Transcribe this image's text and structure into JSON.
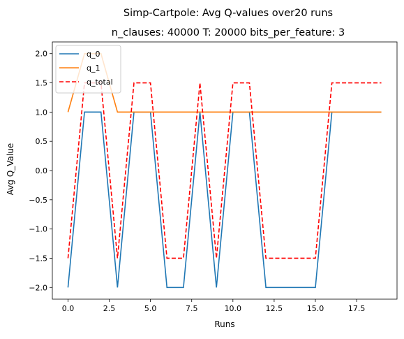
{
  "chart_data": {
    "type": "line",
    "title": "Simp-Cartpole: Avg Q-values over20 runs",
    "subtitle": "n_clauses: 40000 T: 20000 bits_per_feature: 3",
    "xlabel": "Runs",
    "ylabel": "Avg Q_Value",
    "xlim": [
      -0.95,
      19.95
    ],
    "ylim": [
      -2.2,
      2.2
    ],
    "x_ticks": [
      0.0,
      2.5,
      5.0,
      7.5,
      10.0,
      12.5,
      15.0,
      17.5
    ],
    "x_tick_labels": [
      "0.0",
      "2.5",
      "5.0",
      "7.5",
      "10.0",
      "12.5",
      "15.0",
      "17.5"
    ],
    "y_ticks": [
      -2.0,
      -1.5,
      -1.0,
      -0.5,
      0.0,
      0.5,
      1.0,
      1.5,
      2.0
    ],
    "y_tick_labels": [
      "−2.0",
      "−1.5",
      "−1.0",
      "−0.5",
      "0.0",
      "0.5",
      "1.0",
      "1.5",
      "2.0"
    ],
    "grid": false,
    "legend_position": "top-left",
    "x": [
      0,
      1,
      2,
      3,
      4,
      5,
      6,
      7,
      8,
      9,
      10,
      11,
      12,
      13,
      14,
      15,
      16,
      17,
      18,
      19
    ],
    "series": [
      {
        "name": "q_0",
        "color": "#1f77b4",
        "dash": "solid",
        "values": [
          -2,
          1,
          1,
          -2,
          1,
          1,
          -2,
          -2,
          1,
          -2,
          1,
          1,
          -2,
          -2,
          -2,
          -2,
          1,
          1,
          1,
          1
        ]
      },
      {
        "name": "q_1",
        "color": "#ff7f0e",
        "dash": "solid",
        "values": [
          1,
          2,
          2,
          1,
          1,
          1,
          1,
          1,
          1,
          1,
          1,
          1,
          1,
          1,
          1,
          1,
          1,
          1,
          1,
          1
        ]
      },
      {
        "name": "q_total",
        "color": "#ff0000",
        "dash": "dashed",
        "values": [
          -1.5,
          1.5,
          1.5,
          -1.5,
          1.5,
          1.5,
          -1.5,
          -1.5,
          1.5,
          -1.5,
          1.5,
          1.5,
          -1.5,
          -1.5,
          -1.5,
          -1.5,
          1.5,
          1.5,
          1.5,
          1.5
        ]
      }
    ]
  }
}
